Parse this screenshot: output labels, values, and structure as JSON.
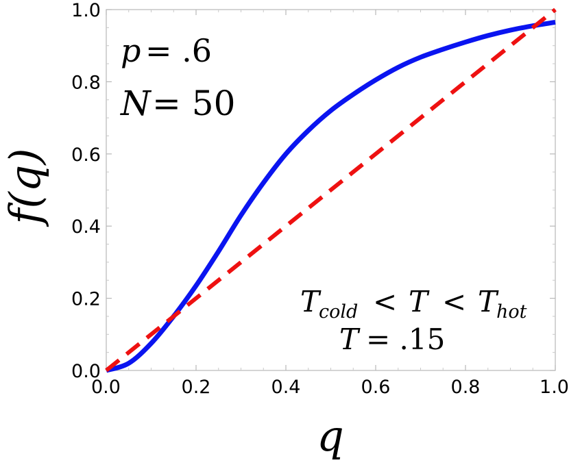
{
  "chart_data": {
    "type": "line",
    "xlabel": "q",
    "ylabel": "f(q)",
    "xlim": [
      0,
      1
    ],
    "ylim": [
      0,
      1
    ],
    "xticks": [
      "0.0",
      "0.2",
      "0.4",
      "0.6",
      "0.8",
      "1.0"
    ],
    "yticks": [
      "0.0",
      "0.2",
      "0.4",
      "0.6",
      "0.8",
      "1.0"
    ],
    "grid": false,
    "series": [
      {
        "style": "solid",
        "color": "#0a14f0",
        "x": [
          0,
          0.05,
          0.1,
          0.15,
          0.2,
          0.25,
          0.3,
          0.35,
          0.4,
          0.45,
          0.5,
          0.55,
          0.6,
          0.65,
          0.7,
          0.75,
          0.8,
          0.85,
          0.9,
          0.95,
          1.0
        ],
        "y": [
          0,
          0.02,
          0.075,
          0.15,
          0.235,
          0.33,
          0.43,
          0.52,
          0.6,
          0.665,
          0.72,
          0.765,
          0.805,
          0.84,
          0.868,
          0.89,
          0.91,
          0.928,
          0.943,
          0.955,
          0.965
        ]
      },
      {
        "style": "dashed",
        "color": "#ee1111",
        "x": [
          0,
          1
        ],
        "y": [
          0,
          1
        ]
      }
    ],
    "annotations": {
      "p_label": "p",
      "p_value": "= .6",
      "n_label": "N",
      "n_value": "= 50",
      "t_cold": "T",
      "t_cold_sub": "cold",
      "lt1": "<",
      "t_mid": "T",
      "lt2": "<",
      "t_hot": "T",
      "t_hot_sub": "hot",
      "t_label": "T",
      "t_value": "= .15"
    }
  }
}
